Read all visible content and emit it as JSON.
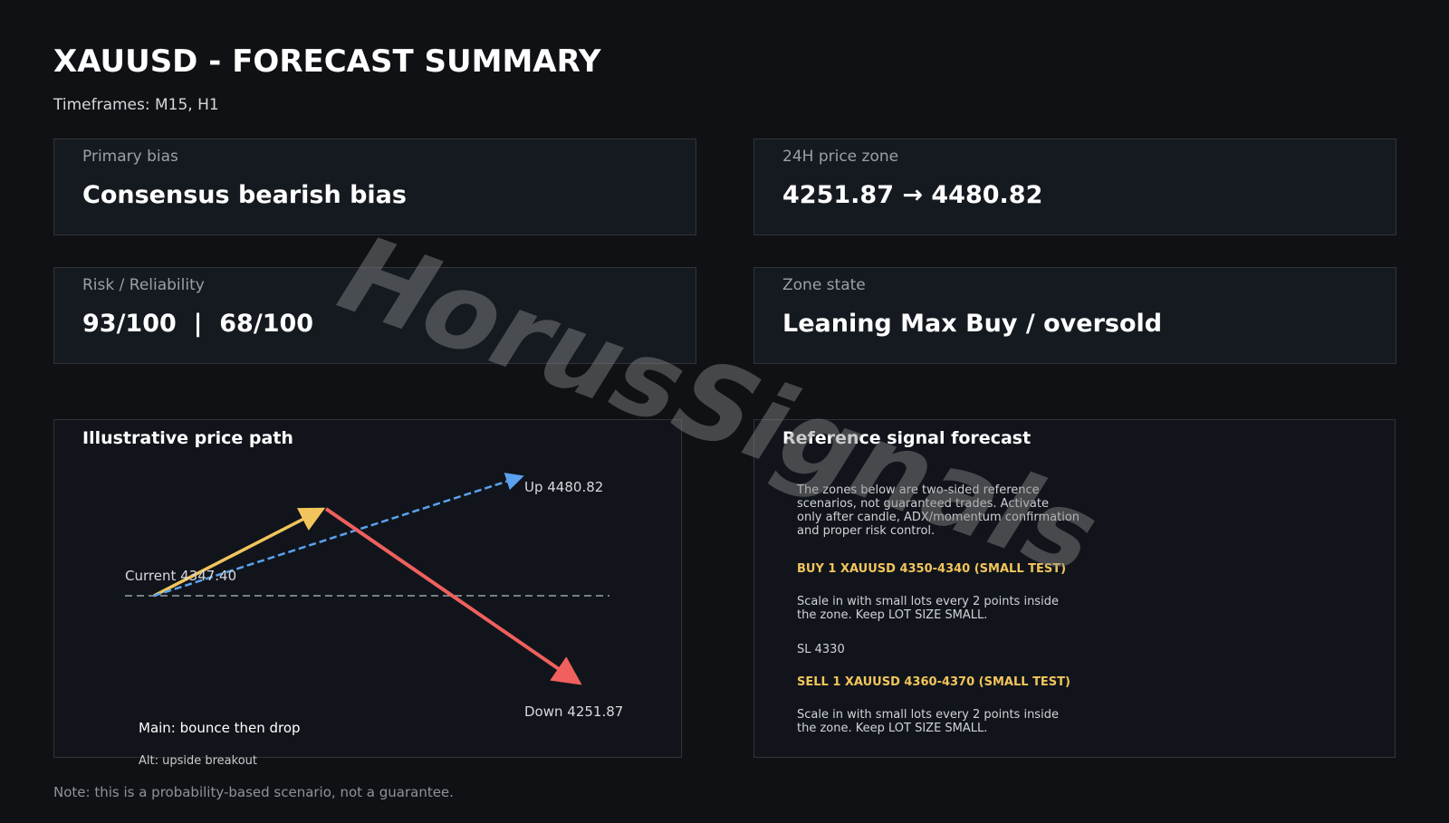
{
  "header": {
    "title": "XAUUSD - FORECAST SUMMARY",
    "subtitle": "Timeframes: M15, H1"
  },
  "cards": [
    {
      "label": "Primary bias",
      "value": "Consensus bearish bias"
    },
    {
      "label": "24H price zone",
      "value": "4251.87 → 4480.82"
    },
    {
      "label": "Risk / Reliability",
      "value": "93/100  |  68/100"
    },
    {
      "label": "Zone state",
      "value": "Leaning Max Buy / oversold"
    }
  ],
  "price_path": {
    "title": "Illustrative price path",
    "current_label": "Current 4347.40",
    "up_label": "Up 4480.82",
    "down_label": "Down 4251.87",
    "main": "Main: bounce then drop",
    "alt": "Alt: upside breakout"
  },
  "signal_forecast": {
    "title": "Reference signal forecast",
    "intro": [
      "The zones below are two-sided reference",
      "scenarios, not guaranteed trades. Activate",
      "only after candle, ADX/momentum confirmation",
      "and proper risk control."
    ],
    "buy": "BUY 1 XAUUSD 4350-4340 (SMALL TEST)",
    "buy_note": [
      "Scale in with small lots every 2 points inside",
      "the zone. Keep LOT SIZE SMALL."
    ],
    "sl": "SL 4330",
    "sell": "SELL 1 XAUUSD 4360-4370 (SMALL TEST)",
    "sell_note": [
      "Scale in with small lots every 2 points inside",
      "the zone. Keep LOT SIZE SMALL."
    ]
  },
  "note": "Note: this is a probability-based scenario, not a guarantee.",
  "watermark": "HorusSignals"
}
